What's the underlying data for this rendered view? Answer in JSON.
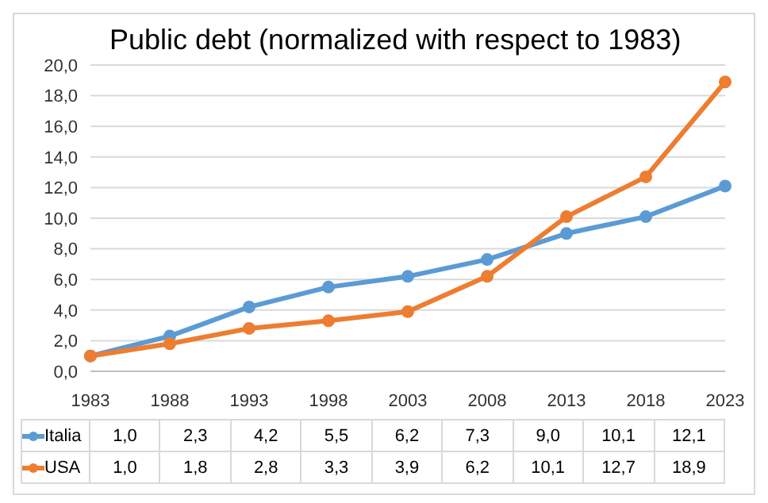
{
  "chart_data": {
    "type": "line",
    "title": "Public debt (normalized with respect to 1983)",
    "categories": [
      "1983",
      "1988",
      "1993",
      "1998",
      "2003",
      "2008",
      "2013",
      "2018",
      "2023"
    ],
    "series": [
      {
        "name": "Italia",
        "color": "#5b9bd5",
        "values": [
          1.0,
          2.3,
          4.2,
          5.5,
          6.2,
          7.3,
          9.0,
          10.1,
          12.1
        ],
        "value_labels": [
          "1,0",
          "2,3",
          "4,2",
          "5,5",
          "6,2",
          "7,3",
          "9,0",
          "10,1",
          "12,1"
        ]
      },
      {
        "name": "USA",
        "color": "#ed7d31",
        "values": [
          1.0,
          1.8,
          2.8,
          3.3,
          3.9,
          6.2,
          10.1,
          12.7,
          18.9
        ],
        "value_labels": [
          "1,0",
          "1,8",
          "2,8",
          "3,3",
          "3,9",
          "6,2",
          "10,1",
          "12,7",
          "18,9"
        ]
      }
    ],
    "ylim": [
      0,
      20
    ],
    "yticks": [
      {
        "value": 0,
        "label": "0,0"
      },
      {
        "value": 2,
        "label": "2,0"
      },
      {
        "value": 4,
        "label": "4,0"
      },
      {
        "value": 6,
        "label": "6,0"
      },
      {
        "value": 8,
        "label": "8,0"
      },
      {
        "value": 10,
        "label": "10,0"
      },
      {
        "value": 12,
        "label": "12,0"
      },
      {
        "value": 14,
        "label": "14,0"
      },
      {
        "value": 16,
        "label": "16,0"
      },
      {
        "value": 18,
        "label": "18,0"
      },
      {
        "value": 20,
        "label": "20,0"
      }
    ],
    "grid": "y",
    "marker": "circle",
    "line_style": "solid",
    "legend": "bottom"
  }
}
